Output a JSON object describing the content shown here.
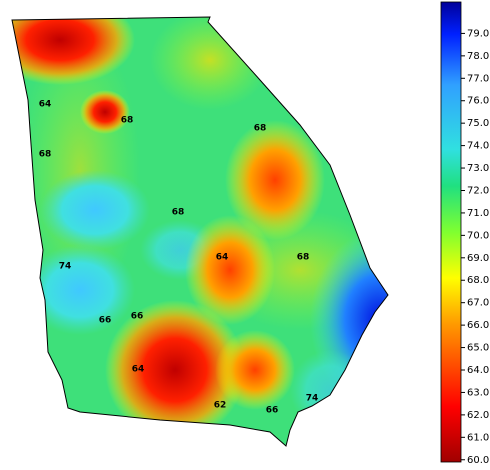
{
  "colorbar": {
    "clim": [
      59.9,
      80.4
    ],
    "ticks": [
      {
        "value": 60,
        "label": "60.0"
      },
      {
        "value": 61,
        "label": "61.0"
      },
      {
        "value": 62,
        "label": "62.0"
      },
      {
        "value": 63,
        "label": "63.0"
      },
      {
        "value": 64,
        "label": "64.0"
      },
      {
        "value": 65,
        "label": "65.0"
      },
      {
        "value": 66,
        "label": "66.0"
      },
      {
        "value": 67,
        "label": "67.0"
      },
      {
        "value": 68,
        "label": "68.0"
      },
      {
        "value": 69,
        "label": "69.0"
      },
      {
        "value": 70,
        "label": "70.0"
      },
      {
        "value": 71,
        "label": "71.0"
      },
      {
        "value": 72,
        "label": "72.0"
      },
      {
        "value": 73,
        "label": "73.0"
      },
      {
        "value": 74,
        "label": "74.0"
      },
      {
        "value": 75,
        "label": "75.0"
      },
      {
        "value": 76,
        "label": "76.0"
      },
      {
        "value": 77,
        "label": "77.0"
      },
      {
        "value": 78,
        "label": "78.0"
      },
      {
        "value": 79,
        "label": "79.0"
      }
    ]
  },
  "contour_labels": [
    64,
    68,
    68,
    68,
    68,
    74,
    64,
    68,
    66,
    66,
    64,
    62,
    66,
    74
  ]
}
